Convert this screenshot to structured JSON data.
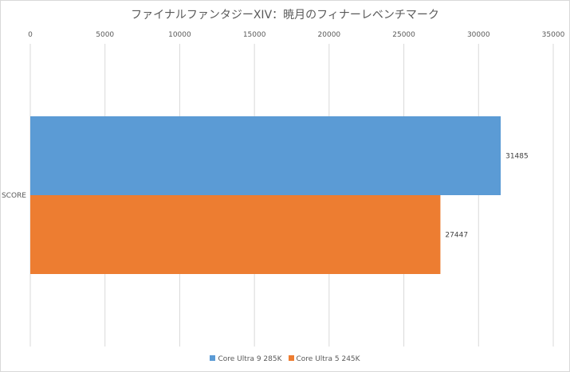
{
  "chart_data": {
    "type": "bar",
    "orientation": "horizontal",
    "title": "ファイナルファンタジーXIV：暁月のフィナーレベンチマーク",
    "categories": [
      "SCORE"
    ],
    "series": [
      {
        "name": "Core Ultra 9 285K",
        "values": [
          31485
        ],
        "color": "#5b9bd5"
      },
      {
        "name": "Core Ultra 5 245K",
        "values": [
          27447
        ],
        "color": "#ed7d31"
      }
    ],
    "xlim": [
      0,
      35000
    ],
    "xticks": [
      0,
      5000,
      10000,
      15000,
      20000,
      25000,
      30000,
      35000
    ],
    "xaxis_position": "top",
    "grid": true,
    "legend_position": "bottom",
    "data_labels": true
  }
}
